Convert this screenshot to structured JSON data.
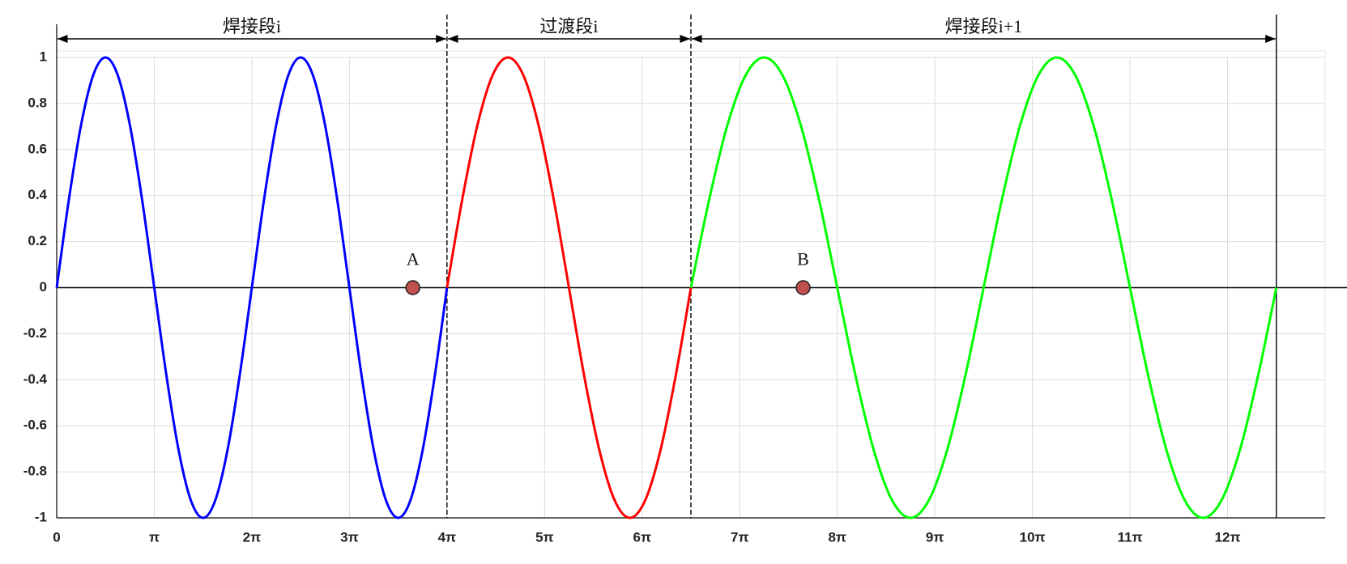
{
  "chart_data": {
    "type": "line",
    "xlim": [
      0,
      13
    ],
    "ylim": [
      -1,
      1
    ],
    "xticks": [
      0,
      {
        "value": 1,
        "label": "π"
      },
      {
        "value": 2,
        "label": "2π"
      },
      {
        "value": 3,
        "label": "3π"
      },
      {
        "value": 4,
        "label": "4π"
      },
      {
        "value": 5,
        "label": "5π"
      },
      {
        "value": 6,
        "label": "6π"
      },
      {
        "value": 7,
        "label": "7π"
      },
      {
        "value": 8,
        "label": "8π"
      },
      {
        "value": 9,
        "label": "9π"
      },
      {
        "value": 10,
        "label": "10π"
      },
      {
        "value": 11,
        "label": "11π"
      },
      {
        "value": 12,
        "label": "12π"
      }
    ],
    "yticks": [
      -1,
      -0.8,
      -0.6,
      -0.4,
      -0.2,
      0,
      0.2,
      0.4,
      0.6,
      0.8,
      1
    ],
    "grid": true,
    "series": [
      {
        "color": "#0000ff",
        "x": [
          0,
          0.125,
          0.25,
          0.375,
          0.5,
          0.625,
          0.75,
          0.875,
          1,
          1.125,
          1.25,
          1.375,
          1.5,
          1.625,
          1.75,
          1.875,
          2,
          2.125,
          2.25,
          2.375,
          2.5,
          2.625,
          2.75,
          2.875,
          3,
          3.125,
          3.25,
          3.375,
          3.5,
          3.625,
          3.75,
          3.875,
          4
        ],
        "values": [
          0,
          0.383,
          0.707,
          0.924,
          1,
          0.924,
          0.707,
          0.383,
          0,
          -0.383,
          -0.707,
          -0.924,
          -1,
          -0.924,
          -0.707,
          -0.383,
          0,
          0.383,
          0.707,
          0.924,
          1,
          0.924,
          0.707,
          0.383,
          0,
          -0.383,
          -0.707,
          -0.924,
          -1,
          -0.924,
          -0.707,
          -0.383,
          0
        ]
      },
      {
        "color": "#ff0000",
        "x": [
          4,
          4.15625,
          4.3125,
          4.46875,
          4.625,
          4.78125,
          4.9375,
          5.09375,
          5.25,
          5.40625,
          5.5625,
          5.71875,
          5.875,
          6.03125,
          6.1875,
          6.34375,
          6.5
        ],
        "values": [
          0,
          0.383,
          0.707,
          0.924,
          1,
          0.924,
          0.707,
          0.383,
          0,
          -0.383,
          -0.707,
          -0.924,
          -1,
          -0.924,
          -0.707,
          -0.383,
          0
        ]
      },
      {
        "color": "#00ff00",
        "x": [
          6.5,
          6.6875,
          6.875,
          7.0625,
          7.25,
          7.4375,
          7.625,
          7.8125,
          8,
          8.1875,
          8.375,
          8.5625,
          8.75,
          8.9375,
          9.125,
          9.3125,
          9.5,
          9.6875,
          9.875,
          10.0625,
          10.25,
          10.4375,
          10.625,
          10.8125,
          11,
          11.1875,
          11.375,
          11.5625,
          11.75,
          11.9375,
          12.125,
          12.3125,
          12.5
        ],
        "values": [
          0,
          0.383,
          0.707,
          0.924,
          1,
          0.924,
          0.707,
          0.383,
          0,
          -0.383,
          -0.707,
          -0.924,
          -1,
          -0.924,
          -0.707,
          -0.383,
          0,
          0.383,
          0.707,
          0.924,
          1,
          0.924,
          0.707,
          0.383,
          0,
          -0.383,
          -0.707,
          -0.924,
          -1,
          -0.924,
          -0.707,
          -0.383,
          0
        ]
      }
    ],
    "points": [
      {
        "label": "A",
        "x": 3.65,
        "y": 0,
        "color": "#c0504d"
      },
      {
        "label": "B",
        "x": 7.65,
        "y": 0,
        "color": "#c0504d"
      }
    ],
    "spans": [
      {
        "label": "焊接段i",
        "from": 0,
        "to": 4,
        "boundary": "dashed"
      },
      {
        "label": "过渡段i",
        "from": 4,
        "to": 6.5,
        "boundary": "dashed"
      },
      {
        "label": "焊接段i+1",
        "from": 6.5,
        "to": 12.5,
        "boundary": "solid"
      }
    ]
  }
}
